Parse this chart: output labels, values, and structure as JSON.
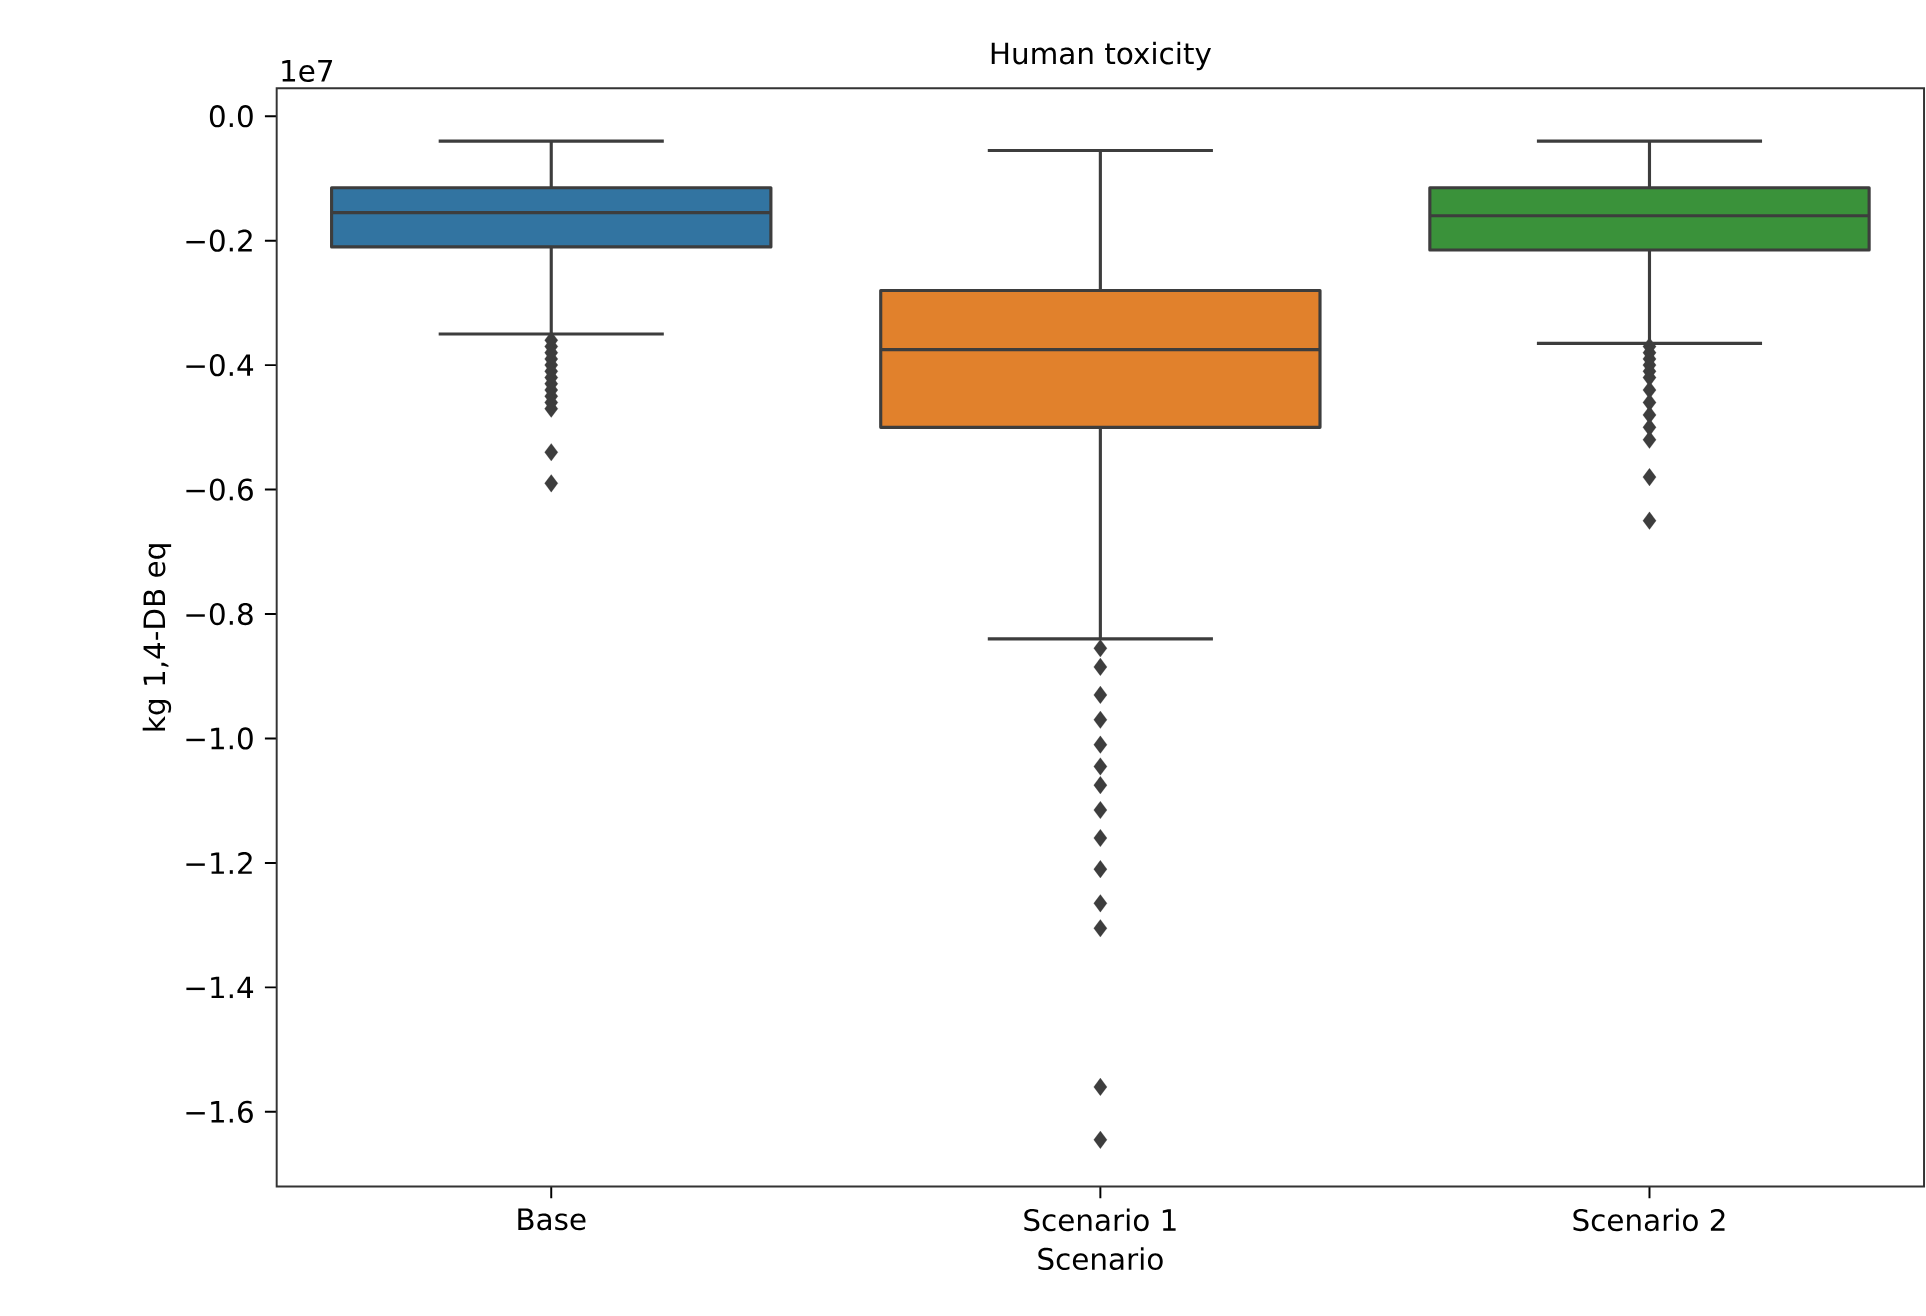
{
  "chart_data": {
    "type": "box",
    "title": "Human toxicity",
    "xlabel": "Scenario",
    "ylabel": "kg 1,4-DB eq",
    "annotations": [
      "1e7"
    ],
    "categories": [
      "Base",
      "Scenario 1",
      "Scenario 2"
    ],
    "colors": [
      "#3274a1",
      "#e1812c",
      "#3a923a"
    ],
    "marker": "diamond",
    "boxes": [
      {
        "low": -0.35,
        "q1": -0.21,
        "median": -0.155,
        "q3": -0.115,
        "high": -0.04,
        "outliers": [
          -0.36,
          -0.37,
          -0.38,
          -0.39,
          -0.4,
          -0.41,
          -0.42,
          -0.43,
          -0.44,
          -0.45,
          -0.46,
          -0.47,
          -0.54,
          -0.59
        ]
      },
      {
        "low": -0.84,
        "q1": -0.5,
        "median": -0.375,
        "q3": -0.28,
        "high": -0.055,
        "outliers": [
          -0.855,
          -0.885,
          -0.93,
          -0.97,
          -1.01,
          -1.045,
          -1.075,
          -1.115,
          -1.16,
          -1.21,
          -1.265,
          -1.305,
          -1.56,
          -1.645
        ]
      },
      {
        "low": -0.365,
        "q1": -0.215,
        "median": -0.16,
        "q3": -0.115,
        "high": -0.04,
        "outliers": [
          -0.37,
          -0.38,
          -0.39,
          -0.4,
          -0.41,
          -0.42,
          -0.44,
          -0.46,
          -0.48,
          -0.5,
          -0.52,
          -0.58,
          -0.65
        ]
      }
    ],
    "ylim": [
      -1.72,
      0.045
    ],
    "yticks": [
      {
        "value": 0,
        "label": "0.0"
      },
      {
        "value": -0.2,
        "label": "−0.2"
      },
      {
        "value": -0.4,
        "label": "−0.4"
      },
      {
        "value": -0.6,
        "label": "−0.6"
      },
      {
        "value": -0.8,
        "label": "−0.8"
      },
      {
        "value": -1.0,
        "label": "−1.0"
      },
      {
        "value": -1.2,
        "label": "−1.2"
      },
      {
        "value": -1.4,
        "label": "−1.4"
      },
      {
        "value": -1.6,
        "label": "−1.6"
      }
    ]
  }
}
